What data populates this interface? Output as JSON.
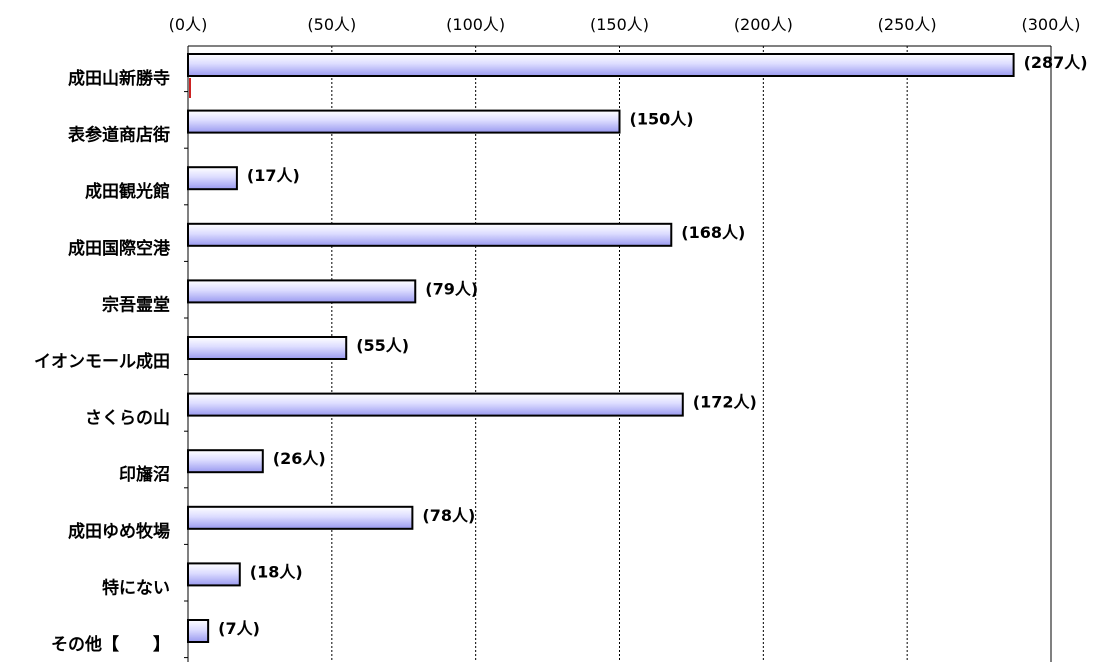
{
  "chart_data": {
    "type": "bar",
    "orientation": "horizontal",
    "categories": [
      "成田山新勝寺",
      "表参道商店街",
      "成田観光館",
      "成田国際空港",
      "宗吾霊堂",
      "イオンモール成田",
      "さくらの山",
      "印旛沼",
      "成田ゆめ牧場",
      "特にない",
      "その他【　　】"
    ],
    "values": [
      287,
      150,
      17,
      168,
      79,
      55,
      172,
      26,
      78,
      18,
      7
    ],
    "value_labels": [
      "(287人)",
      "(150人)",
      "(17人)",
      "(168人)",
      "(79人)",
      "(55人)",
      "(172人)",
      "(26人)",
      "(78人)",
      "(18人)",
      "(7人)"
    ],
    "x_ticks": [
      "(0人)",
      "(50人)",
      "(100人)",
      "(150人)",
      "(200人)",
      "(250人)",
      "(300人)"
    ],
    "xlim": [
      0,
      300
    ],
    "axis_position": "top",
    "grid": "vertical dashed",
    "colors": {
      "bar_fill_light": "#eeeeff",
      "bar_fill_dark": "#9999ee",
      "bar_stroke": "#000000"
    }
  }
}
